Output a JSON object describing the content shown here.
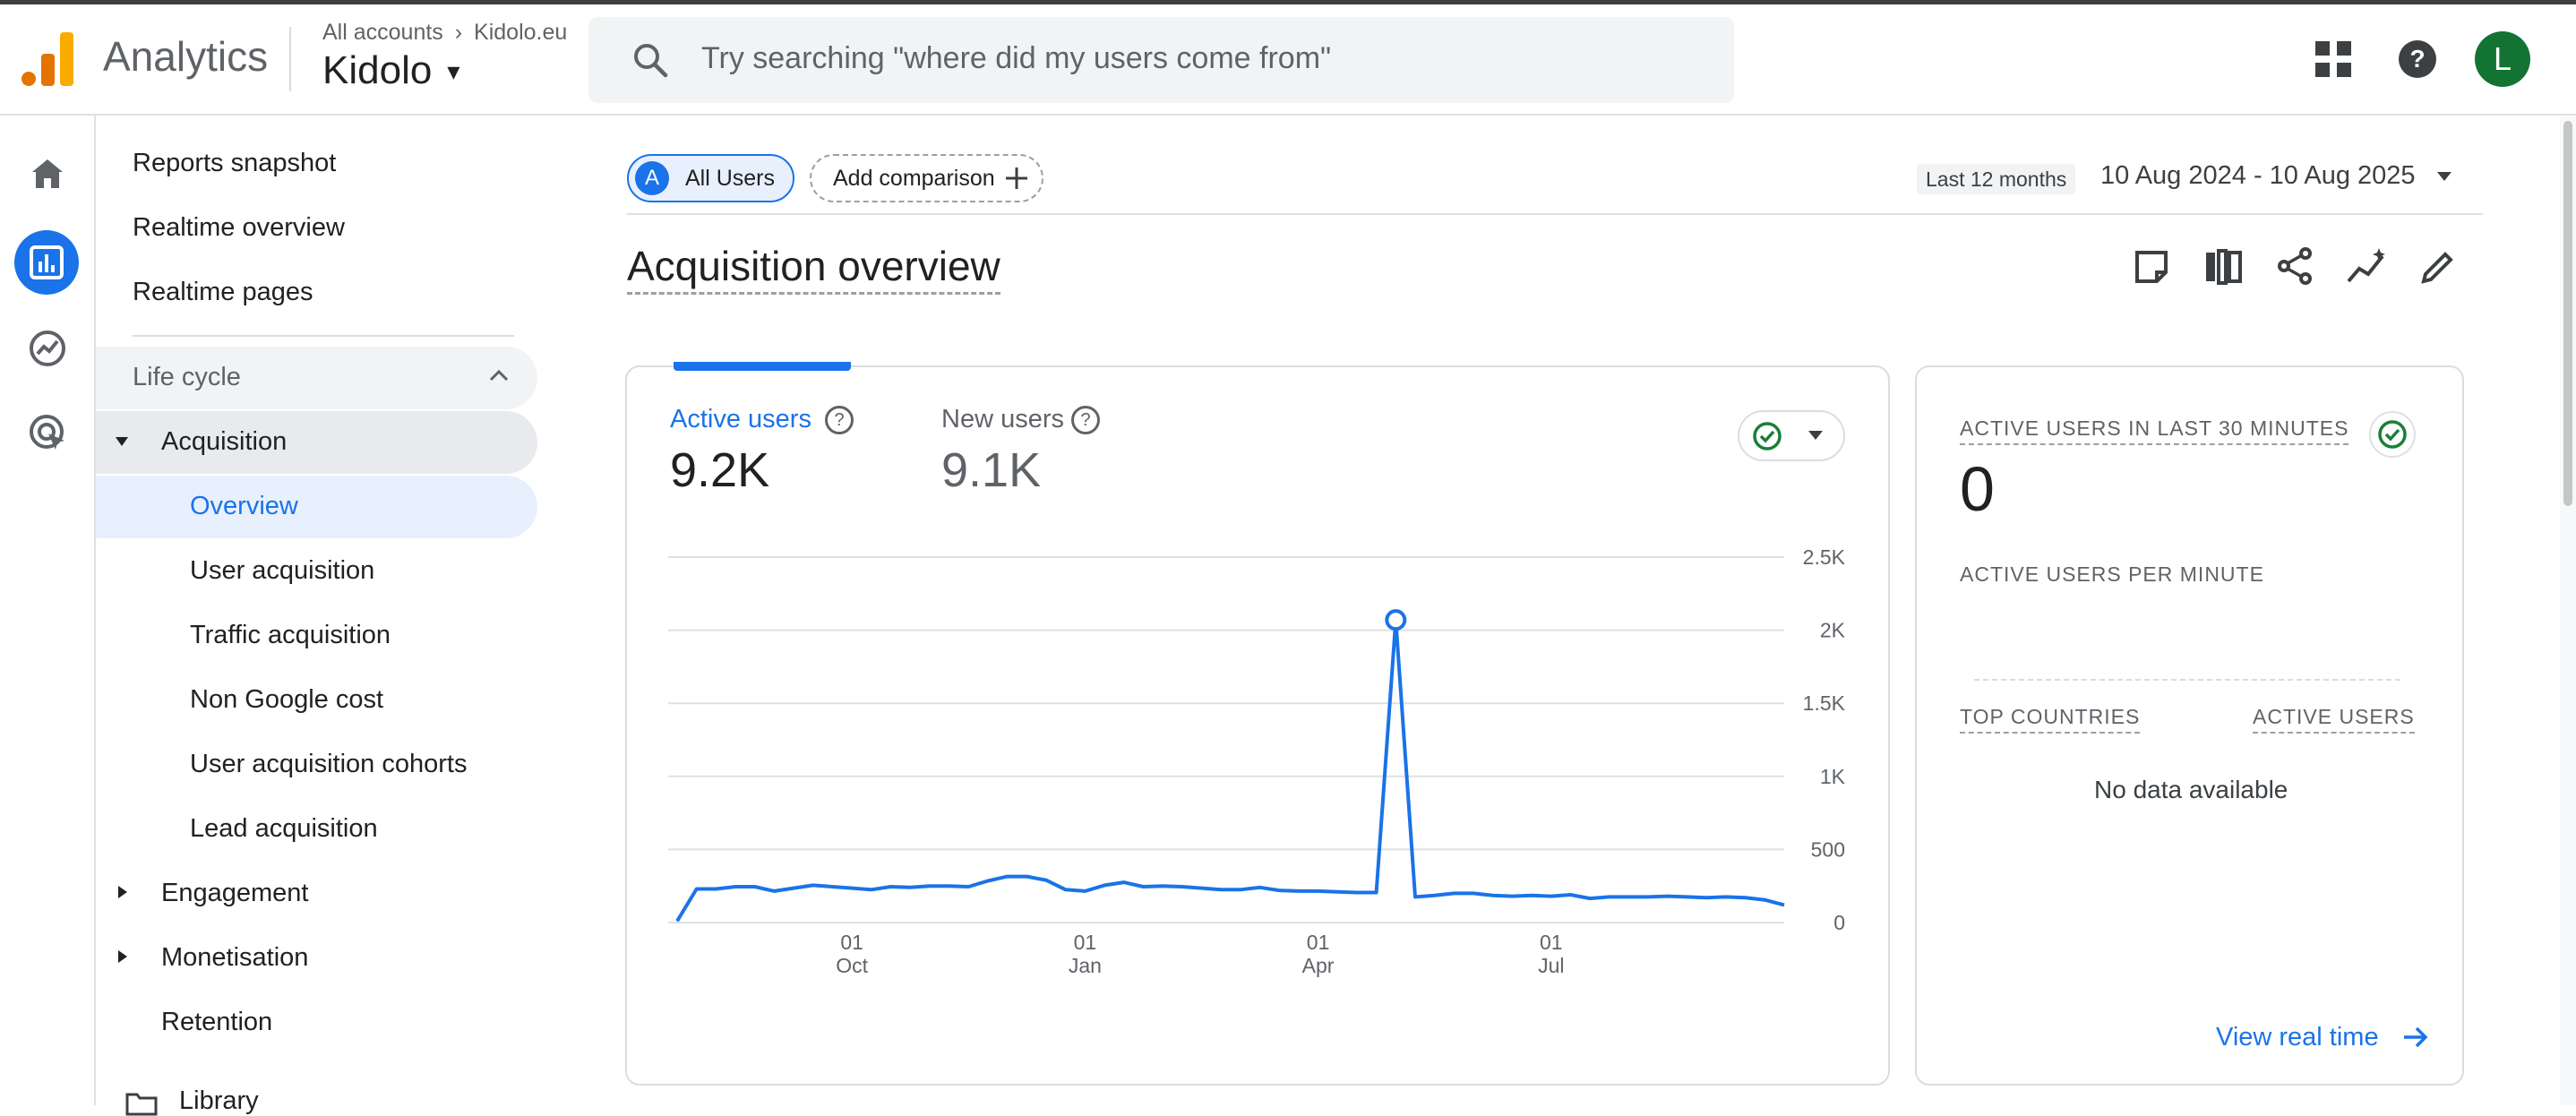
{
  "header": {
    "app_name": "Analytics",
    "breadcrumb_all": "All accounts",
    "breadcrumb_account": "Kidolo.eu",
    "property": "Kidolo",
    "search_placeholder": "Try searching \"where did my users come from\"",
    "avatar_letter": "L"
  },
  "nav": {
    "reports_snapshot": "Reports snapshot",
    "realtime_overview": "Realtime overview",
    "realtime_pages": "Realtime pages",
    "lifecycle": "Life cycle",
    "acquisition": "Acquisition",
    "acq_items": [
      "Overview",
      "User acquisition",
      "Traffic acquisition",
      "Non Google cost",
      "User acquisition cohorts",
      "Lead acquisition"
    ],
    "engagement": "Engagement",
    "monetisation": "Monetisation",
    "retention": "Retention",
    "library": "Library"
  },
  "toolbar": {
    "segment_letter": "A",
    "segment": "All Users",
    "add_comparison": "Add comparison",
    "date_preset": "Last 12 months",
    "date_range": "10 Aug 2024 - 10 Aug 2025"
  },
  "page": {
    "title": "Acquisition overview"
  },
  "metrics": {
    "active_label": "Active users",
    "active_value": "9.2K",
    "new_label": "New users",
    "new_value": "9.1K"
  },
  "realtime": {
    "title": "ACTIVE USERS IN LAST 30 MINUTES",
    "value": "0",
    "per_minute": "ACTIVE USERS PER MINUTE",
    "col_countries": "TOP COUNTRIES",
    "col_users": "ACTIVE USERS",
    "empty": "No data available",
    "view_link": "View real time"
  },
  "colors": {
    "accent": "#1a73e8",
    "ok": "#188038"
  },
  "chart_data": {
    "type": "line",
    "series": [
      {
        "name": "Active users",
        "values": [
          10,
          230,
          230,
          245,
          245,
          215,
          235,
          255,
          245,
          235,
          225,
          245,
          240,
          250,
          250,
          245,
          285,
          315,
          315,
          290,
          225,
          215,
          255,
          275,
          245,
          250,
          245,
          235,
          225,
          225,
          240,
          220,
          215,
          215,
          210,
          205,
          205,
          2070,
          175,
          185,
          200,
          200,
          185,
          180,
          185,
          180,
          190,
          165,
          175,
          175,
          175,
          180,
          175,
          170,
          175,
          170,
          155,
          120
        ]
      }
    ],
    "x_tick_labels": [
      {
        "day": "01",
        "month": "Oct"
      },
      {
        "day": "01",
        "month": "Jan"
      },
      {
        "day": "01",
        "month": "Apr"
      },
      {
        "day": "01",
        "month": "Jul"
      }
    ],
    "x_tick_positions": [
      9,
      21,
      33,
      45
    ],
    "y_ticks": [
      0,
      500,
      1000,
      1500,
      2000,
      2500
    ],
    "y_tick_labels": [
      "0",
      "500",
      "1K",
      "1.5K",
      "2K",
      "2.5K"
    ],
    "ylim": [
      0,
      2500
    ],
    "highlight_index": 37,
    "grid": true
  }
}
